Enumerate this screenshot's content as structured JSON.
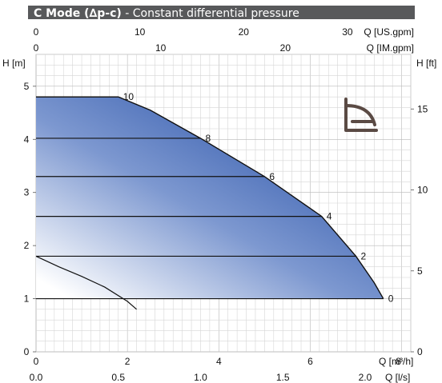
{
  "title_bold": "C Mode (∆p-c)",
  "title_rest": " - Constant differential pressure",
  "colors": {
    "title_bg": "#58595b",
    "title_text": "#ffffff",
    "grid": "#c8c8c8",
    "fill_dark": "#3a60b0",
    "fill_light": "#ffffff",
    "curve": "#111111",
    "icon": "#5a4a44"
  },
  "axes": {
    "y_left_label": "H [m]",
    "y_right_label": "H [ft]",
    "x_us_label": "Q [US.gpm]",
    "x_im_label": "Q [IM.gpm]",
    "x_m3h_label": "Q [m³/h]",
    "x_ls_label": "Q [l/s]",
    "y_left_ticks": [
      "0",
      "1",
      "2",
      "3",
      "4",
      "5"
    ],
    "y_right_ticks": [
      "0",
      "5",
      "10",
      "15"
    ],
    "x_us_ticks": [
      "0",
      "10",
      "20",
      "30"
    ],
    "x_im_ticks": [
      "0",
      "10",
      "20"
    ],
    "x_m3h_ticks": [
      "0",
      "2",
      "4",
      "6",
      "8"
    ],
    "x_ls_ticks": [
      "0.0",
      "0.5",
      "1.0",
      "1.5",
      "2.0"
    ]
  },
  "icon_name": "constant-pressure-mode-icon",
  "chart_data": {
    "type": "line",
    "title": "C Mode (∆p-c) - Constant differential pressure",
    "xlabel": "Q [m³/h]",
    "ylabel": "H [m]",
    "xlim": [
      0,
      8.2
    ],
    "ylim": [
      0,
      5.6
    ],
    "grid": true,
    "secondary_axes": {
      "y_right": {
        "label": "H [ft]",
        "range_ft": [
          0,
          18.37
        ]
      },
      "x_top_us": {
        "label": "Q [US.gpm]",
        "range": [
          0,
          36.1
        ]
      },
      "x_top_im": {
        "label": "Q [IM.gpm]",
        "range": [
          0,
          30.1
        ]
      },
      "x_bottom_ls": {
        "label": "Q [l/s]",
        "range": [
          0,
          2.28
        ]
      }
    },
    "max_curve": {
      "name": "max",
      "x": [
        0,
        1.8,
        2.5,
        3.6,
        5.0,
        6.25,
        7.0,
        7.4,
        7.6
      ],
      "y": [
        4.8,
        4.8,
        4.55,
        4.02,
        3.3,
        2.55,
        1.8,
        1.3,
        1.0
      ]
    },
    "setpoint_lines": [
      {
        "label": "10",
        "h": 4.8,
        "x_end": 1.8
      },
      {
        "label": "8",
        "h": 4.02,
        "x_end": 3.6
      },
      {
        "label": "6",
        "h": 3.3,
        "x_end": 5.0
      },
      {
        "label": "4",
        "h": 2.55,
        "x_end": 6.25
      },
      {
        "label": "2",
        "h": 1.8,
        "x_end": 7.0
      },
      {
        "label": "0",
        "h": 1.0,
        "x_end": 7.6
      }
    ],
    "min_curve": {
      "name": "min",
      "x": [
        0,
        0.5,
        1.0,
        1.5,
        2.0,
        2.2
      ],
      "y": [
        1.8,
        1.6,
        1.42,
        1.22,
        0.95,
        0.8
      ]
    }
  }
}
